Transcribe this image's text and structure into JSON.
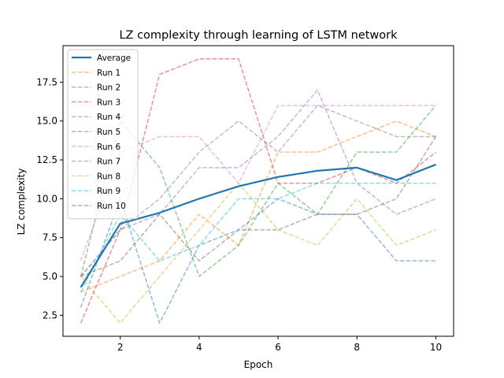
{
  "chart_data": {
    "type": "line",
    "title": "LZ complexity through learning of LSTM network",
    "xlabel": "Epoch",
    "ylabel": "LZ complexity",
    "x": [
      1,
      2,
      3,
      4,
      5,
      6,
      7,
      8,
      9,
      10
    ],
    "xlim": [
      0.55,
      10.45
    ],
    "ylim": [
      1.15,
      19.85
    ],
    "xticks": [
      2,
      4,
      6,
      8,
      10
    ],
    "yticks": [
      2.5,
      5.0,
      7.5,
      10.0,
      12.5,
      15.0,
      17.5
    ],
    "ytick_labels": [
      "2.5",
      "5.0",
      "7.5",
      "10.0",
      "12.5",
      "15.0",
      "17.5"
    ],
    "grid": false,
    "legend_position": "upper-left",
    "series": [
      {
        "name": "Average",
        "color": "#1f77b4",
        "style": "solid",
        "values": [
          4.3,
          8.4,
          9.1,
          10.0,
          10.8,
          11.4,
          11.8,
          12.0,
          11.2,
          12.2
        ]
      },
      {
        "name": "Run 1",
        "color": "#ff7f0e",
        "style": "dashed",
        "values": [
          4,
          5,
          6,
          9,
          7,
          13,
          13,
          14,
          15,
          14
        ]
      },
      {
        "name": "Run 2",
        "color": "#2ca02c",
        "style": "dashed",
        "values": [
          5,
          15,
          12,
          5,
          7,
          11,
          9,
          13,
          13,
          16
        ]
      },
      {
        "name": "Run 3",
        "color": "#d62728",
        "style": "dashed",
        "values": [
          2,
          8,
          18,
          19,
          19,
          11,
          11,
          12,
          11,
          13
        ]
      },
      {
        "name": "Run 4",
        "color": "#9467bd",
        "style": "dashed",
        "values": [
          5,
          8,
          9,
          12,
          12,
          14,
          17,
          11,
          9,
          10
        ]
      },
      {
        "name": "Run 5",
        "color": "#8c564b",
        "style": "dashed",
        "values": [
          5,
          6,
          9,
          6,
          8,
          8,
          9,
          9,
          10,
          14
        ]
      },
      {
        "name": "Run 6",
        "color": "#e377c2",
        "style": "dashed",
        "values": [
          6,
          13,
          14,
          14,
          11,
          16,
          16,
          16,
          16,
          16
        ]
      },
      {
        "name": "Run 7",
        "color": "#7f7f7f",
        "style": "dashed",
        "values": [
          5,
          8,
          10,
          13,
          15,
          13,
          16,
          15,
          14,
          14
        ]
      },
      {
        "name": "Run 8",
        "color": "#bcbd22",
        "style": "dashed",
        "values": [
          5,
          2,
          5,
          8,
          11,
          8,
          7,
          10,
          7,
          8
        ]
      },
      {
        "name": "Run 9",
        "color": "#17becf",
        "style": "dashed",
        "values": [
          4,
          9,
          6,
          7,
          10,
          10,
          11,
          11,
          11,
          11
        ]
      },
      {
        "name": "Run 10",
        "color": "#1f77b4",
        "style": "dashed",
        "values": [
          3,
          10,
          2,
          7,
          8,
          10,
          9,
          9,
          6,
          6
        ]
      }
    ]
  }
}
